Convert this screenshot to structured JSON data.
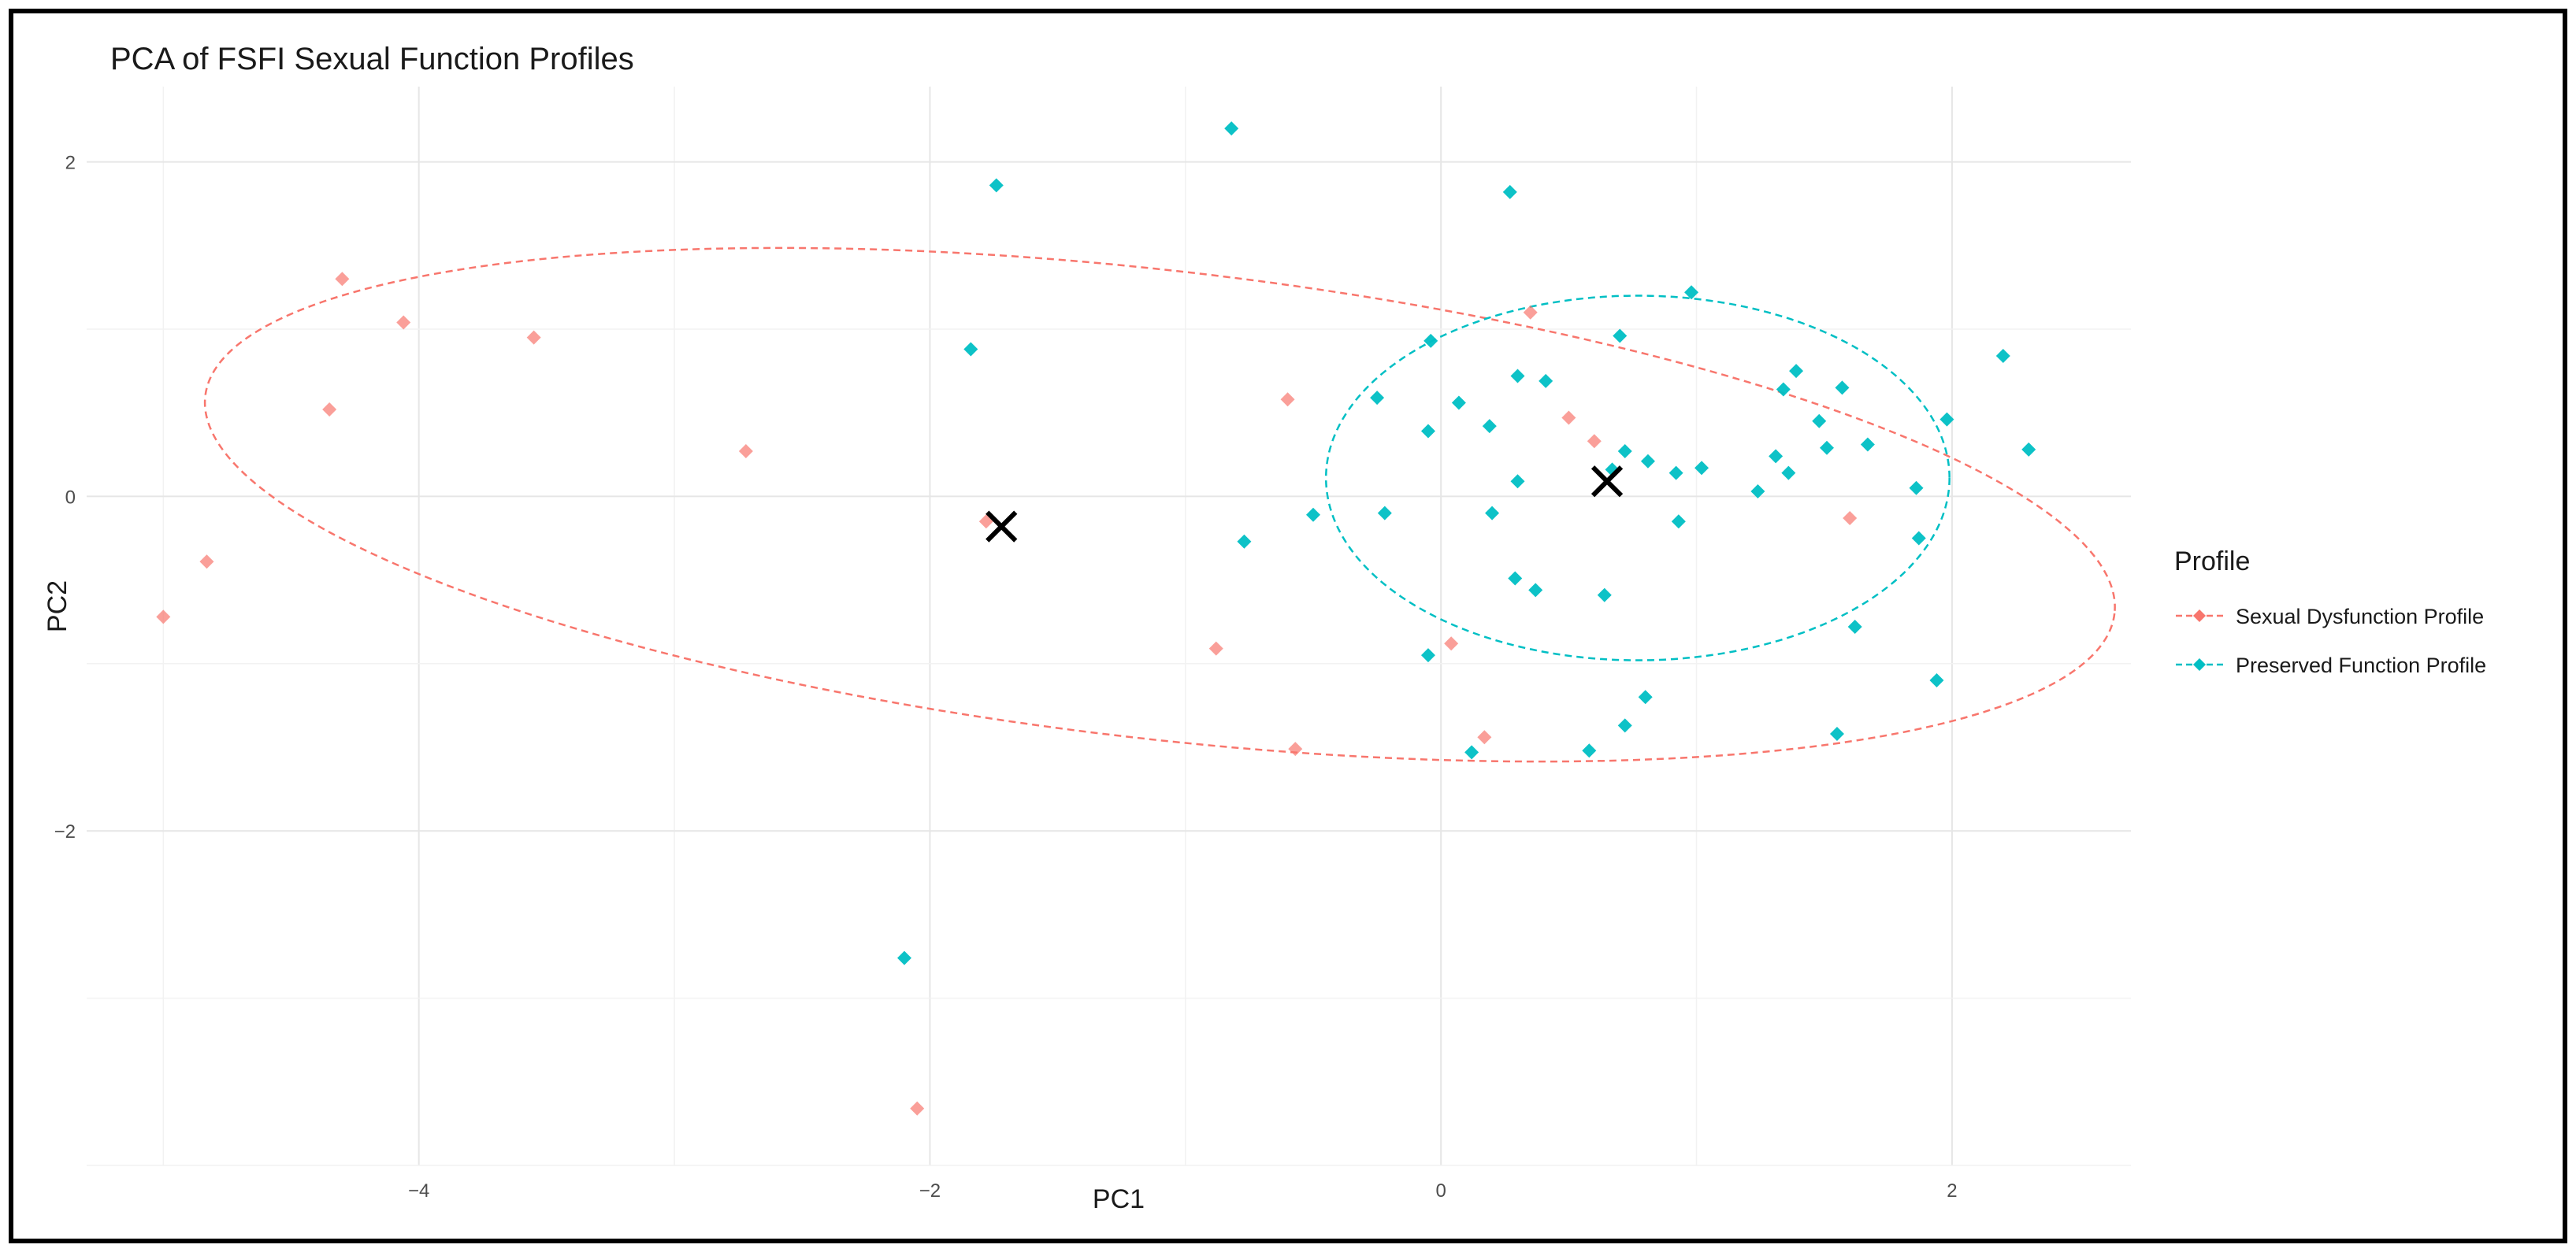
{
  "chart_data": {
    "type": "scatter",
    "title": "PCA of FSFI Sexual Function Profiles",
    "xlabel": "PC1",
    "ylabel": "PC2",
    "xlim": [
      -5.3,
      2.7
    ],
    "ylim": [
      -4.0,
      2.45
    ],
    "x_ticks": [
      -4,
      -2,
      0,
      2
    ],
    "y_ticks": [
      -2,
      0,
      2
    ],
    "grid": true,
    "legend": {
      "title": "Profile",
      "position": "right"
    },
    "series": [
      {
        "name": "Sexual Dysfunction Profile",
        "color": "#F8766D",
        "marker": "diamond",
        "points": [
          [
            -5.0,
            -0.72
          ],
          [
            -4.83,
            -0.39
          ],
          [
            -4.35,
            0.52
          ],
          [
            -4.3,
            1.3
          ],
          [
            -4.06,
            1.04
          ],
          [
            -3.55,
            0.95
          ],
          [
            -2.72,
            0.27
          ],
          [
            -2.05,
            -3.66
          ],
          [
            -1.78,
            -0.15
          ],
          [
            -0.88,
            -0.91
          ],
          [
            -0.6,
            0.58
          ],
          [
            -0.57,
            -1.51
          ],
          [
            0.04,
            -0.88
          ],
          [
            0.17,
            -1.44
          ],
          [
            0.35,
            1.1
          ],
          [
            0.5,
            0.47
          ],
          [
            0.6,
            0.33
          ],
          [
            1.6,
            -0.13
          ]
        ],
        "ellipse": {
          "center": [
            -1.1,
            -0.05
          ],
          "semi_axes": [
            3.76,
            1.4
          ],
          "angle_deg": -6.5,
          "style": "dashed"
        }
      },
      {
        "name": "Preserved Function Profile",
        "color": "#00BFC4",
        "marker": "diamond",
        "points": [
          [
            -0.82,
            2.2
          ],
          [
            -1.74,
            1.86
          ],
          [
            -1.84,
            0.88
          ],
          [
            -0.77,
            -0.27
          ],
          [
            -2.1,
            -2.76
          ],
          [
            -0.5,
            -0.11
          ],
          [
            -0.25,
            0.59
          ],
          [
            -0.22,
            -0.1
          ],
          [
            -0.05,
            0.39
          ],
          [
            -0.04,
            0.93
          ],
          [
            -0.05,
            -0.95
          ],
          [
            0.07,
            0.56
          ],
          [
            0.12,
            -1.53
          ],
          [
            0.19,
            0.42
          ],
          [
            0.2,
            -0.1
          ],
          [
            0.27,
            1.82
          ],
          [
            0.29,
            -0.49
          ],
          [
            0.3,
            0.09
          ],
          [
            0.3,
            0.72
          ],
          [
            0.37,
            -0.56
          ],
          [
            0.41,
            0.69
          ],
          [
            0.58,
            -1.52
          ],
          [
            0.64,
            -0.59
          ],
          [
            0.67,
            0.16
          ],
          [
            0.7,
            0.96
          ],
          [
            0.72,
            0.27
          ],
          [
            0.72,
            -1.37
          ],
          [
            0.8,
            -1.2
          ],
          [
            0.81,
            0.21
          ],
          [
            0.92,
            0.14
          ],
          [
            0.93,
            -0.15
          ],
          [
            0.98,
            1.22
          ],
          [
            1.02,
            0.17
          ],
          [
            1.24,
            0.03
          ],
          [
            1.31,
            0.24
          ],
          [
            1.34,
            0.64
          ],
          [
            1.36,
            0.14
          ],
          [
            1.39,
            0.75
          ],
          [
            1.48,
            0.45
          ],
          [
            1.51,
            0.29
          ],
          [
            1.55,
            -1.42
          ],
          [
            1.57,
            0.65
          ],
          [
            1.62,
            -0.78
          ],
          [
            1.67,
            0.31
          ],
          [
            1.86,
            0.05
          ],
          [
            1.87,
            -0.25
          ],
          [
            1.94,
            -1.1
          ],
          [
            1.98,
            0.46
          ],
          [
            2.2,
            0.84
          ],
          [
            2.3,
            0.28
          ]
        ],
        "ellipse": {
          "center": [
            0.77,
            0.11
          ],
          "semi_axes": [
            1.22,
            1.09
          ],
          "angle_deg": 0,
          "style": "dashed"
        }
      }
    ],
    "centroids": [
      {
        "name": "Sexual Dysfunction Profile",
        "x": -1.72,
        "y": -0.18
      },
      {
        "name": "Preserved Function Profile",
        "x": 0.65,
        "y": 0.09
      }
    ]
  }
}
